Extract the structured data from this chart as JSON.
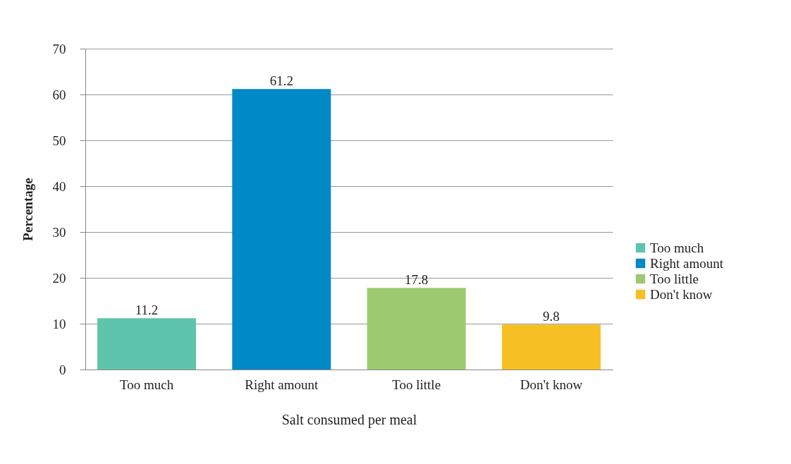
{
  "chart_data": {
    "type": "bar",
    "xlabel": "Salt consumed per meal",
    "ylabel": "Percentage",
    "categories": [
      "Too much",
      "Right amount",
      "Too little",
      "Don't know"
    ],
    "series": [
      {
        "name": "Too much",
        "color": "#5fc4ac",
        "values": [
          11.2,
          null,
          null,
          null
        ]
      },
      {
        "name": "Right amount",
        "color": "#0089c7",
        "values": [
          null,
          61.2,
          null,
          null
        ]
      },
      {
        "name": "Too little",
        "color": "#9dca71",
        "values": [
          null,
          null,
          17.8,
          null
        ]
      },
      {
        "name": "Don't know",
        "color": "#f6c024",
        "values": [
          null,
          null,
          null,
          9.8
        ]
      }
    ],
    "ylim": [
      0,
      70
    ],
    "yticks": [
      0,
      10,
      20,
      30,
      40,
      50,
      60,
      70
    ],
    "grid": "y",
    "legend": "right",
    "data_labels": true
  }
}
